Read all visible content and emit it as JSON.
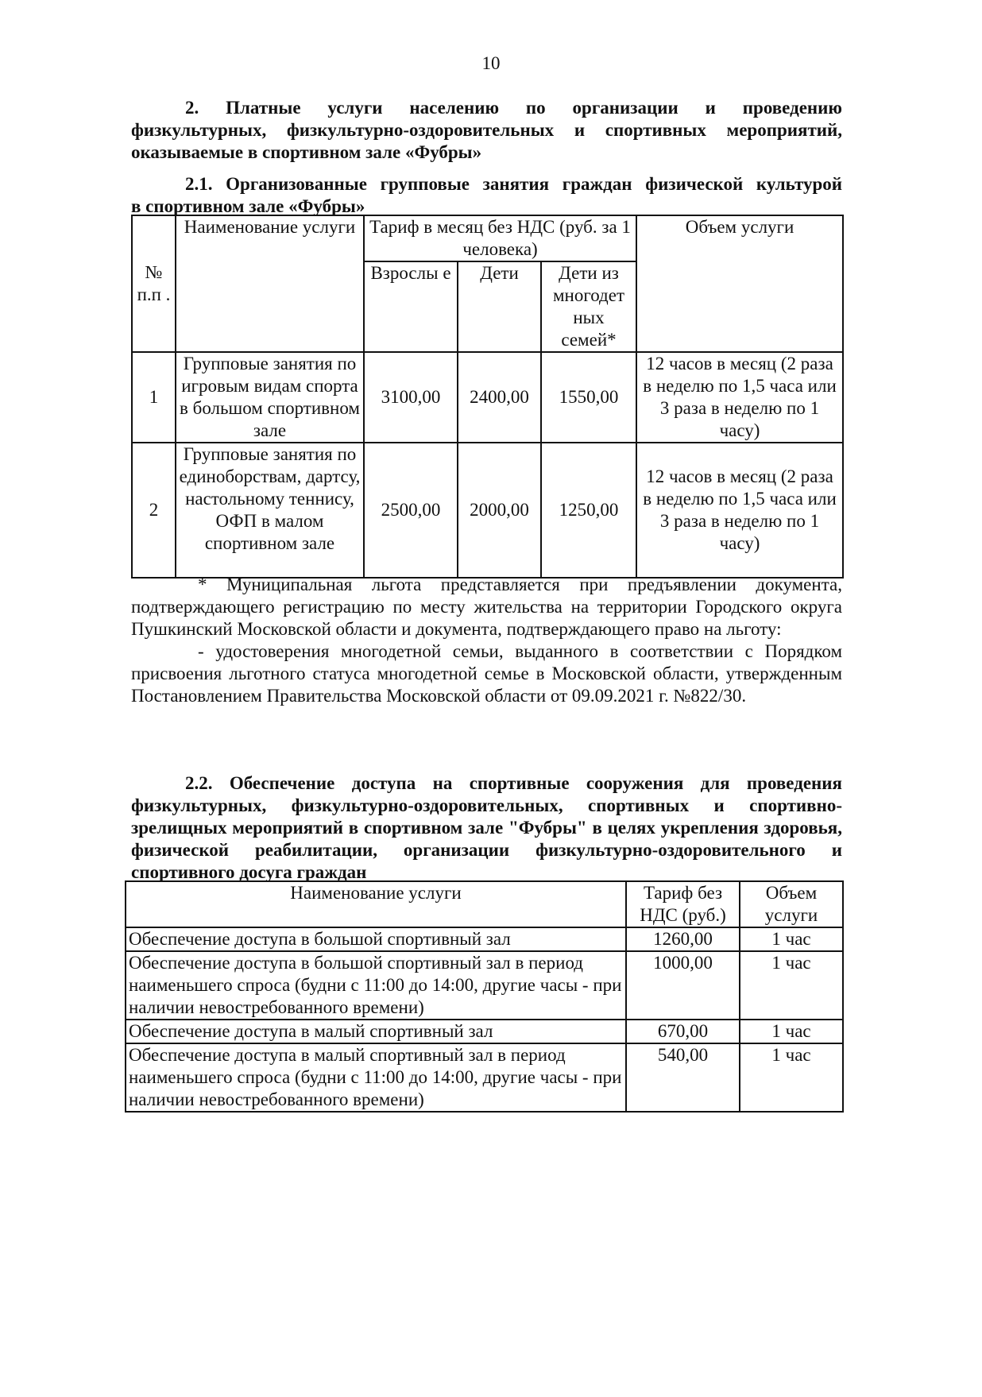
{
  "page_number": "10",
  "section2": {
    "lines": [
      "2.    Платные    услуги    населению    по    организации    и    проведению",
      "физкультурных,  физкультурно-оздоровительных  и  спортивных  мероприятий,",
      "оказываемые в спортивном зале «Фубры»"
    ]
  },
  "section21": {
    "lines": [
      "2.1.    Организованные групповые занятия граждан физической культурой",
      "в спортивном зале «Фубры»"
    ]
  },
  "table1": {
    "headers": {
      "num": "№ п.п .",
      "name": "Наименование услуги",
      "tariff": "Тариф в месяц  без НДС (руб. за 1 человека)",
      "adults": "Взрослы е",
      "children": "Дети",
      "large_families": "Дети из многодет ных семей*",
      "volume": "Объем услуги"
    },
    "rows": [
      {
        "num": "1",
        "name": "Групповые занятия по игровым видам спорта в большом спортивном зале",
        "adults": "3100,00",
        "children": "2400,00",
        "large_families": "1550,00",
        "volume": "12 часов в месяц (2 раза в неделю по 1,5 часа или 3 раза в неделю по 1 часу)"
      },
      {
        "num": "2",
        "name": "Групповые занятия по единоборствам, дартсу, настольному теннису, ОФП в малом спортивном зале",
        "adults": "2500,00",
        "children": "2000,00",
        "large_families": "1250,00",
        "volume": "12 часов в месяц (2 раза в неделю по 1,5 часа или 3 раза в неделю по 1 часу)"
      }
    ]
  },
  "footnote": {
    "p1": "* Муниципальная льгота представляется при предъявлении документа, подтверждающего регистрацию по месту жительства на территории Городского округа Пушкинский Московской области и документа, подтверждающего право на льготу:",
    "p2": "- удостоверения многодетной семьи, выданного в соответствии с Порядком присвоения льготного статуса многодетной семье в Московской области, утвержденным Постановлением Правительства Московской области от 09.09.2021 г. №822/30."
  },
  "section22": {
    "text": "2.2. Обеспечение доступа на  спортивные сооружения  для проведения физкультурных, физкультурно-оздоровительных, спортивных и спортивно-зрелищных мероприятий в спортивном зале \"Фубры\" в целях укрепления здоровья, физической реабилитации, организации физкультурно-оздоровительного и спортивного досуга  граждан"
  },
  "table2": {
    "headers": {
      "name": "Наименование услуги",
      "tariff": "Тариф без НДС (руб.)",
      "volume": "Объем услуги"
    },
    "rows": [
      {
        "name": "Обеспечение доступа в большой спортивный зал",
        "tariff": "1260,00",
        "volume": "1 час"
      },
      {
        "name": "Обеспечение доступа в большой спортивный зал в период наименьшего спроса (будни с 11:00 до 14:00,  другие часы - при наличии невостребованного времени)",
        "tariff": "1000,00",
        "volume": "1 час"
      },
      {
        "name": "Обеспечение доступа в малый спортивный зал",
        "tariff": "670,00",
        "volume": "1 час"
      },
      {
        "name": "Обеспечение доступа в малый спортивный зал в период наименьшего спроса (будни с 11:00 до 14:00,  другие часы - при наличии невостребованного времени)",
        "tariff": "540,00",
        "volume": "1 час"
      }
    ]
  }
}
